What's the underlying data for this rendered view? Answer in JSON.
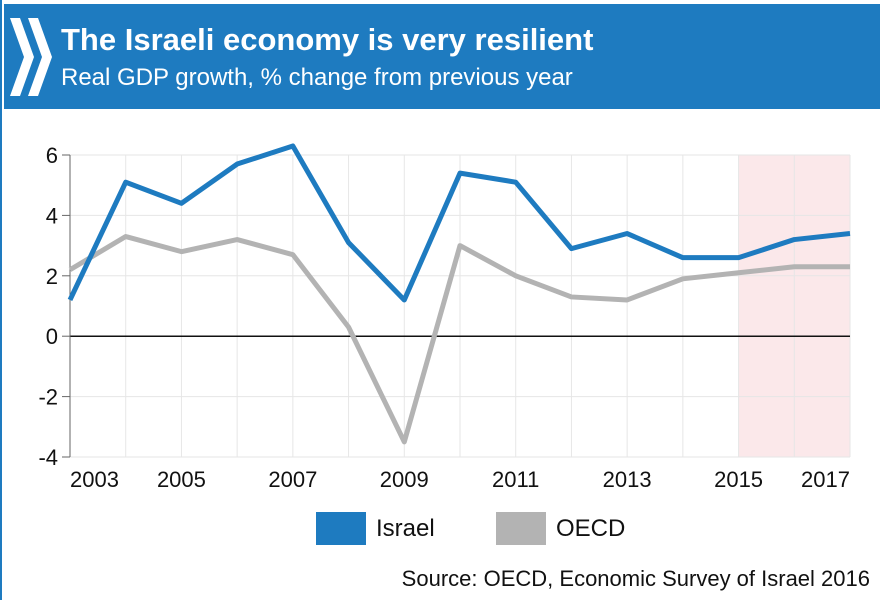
{
  "header": {
    "title": "The Israeli economy is very resilient",
    "subtitle": "Real GDP growth, % change from previous year"
  },
  "colors": {
    "header_bg": "#1e7bc0",
    "israel": "#1e7bc0",
    "oecd": "#b3b3b3",
    "projection_shade": "#fbe8ea"
  },
  "chart_data": {
    "type": "line",
    "x": [
      2003,
      2004,
      2005,
      2006,
      2007,
      2008,
      2009,
      2010,
      2011,
      2012,
      2013,
      2014,
      2015,
      2016,
      2017
    ],
    "x_tick_labels": [
      "2003",
      "2005",
      "2007",
      "2009",
      "2011",
      "2013",
      "2015",
      "2017"
    ],
    "y_tick_labels": [
      "6",
      "4",
      "2",
      "0",
      "-2",
      "-4"
    ],
    "ylim": [
      -4,
      6
    ],
    "xlim": [
      2003,
      2017
    ],
    "grid": true,
    "legend_position": "bottom",
    "projection_shaded_from": 2015,
    "series": [
      {
        "name": "Israel",
        "values": [
          1.2,
          5.1,
          4.4,
          5.7,
          6.3,
          3.1,
          1.2,
          5.4,
          5.1,
          2.9,
          3.4,
          2.6,
          2.6,
          3.2,
          3.4
        ]
      },
      {
        "name": "OECD",
        "values": [
          2.2,
          3.3,
          2.8,
          3.2,
          2.7,
          0.3,
          -3.5,
          3.0,
          2.0,
          1.3,
          1.2,
          1.9,
          2.1,
          2.3,
          2.3
        ]
      }
    ]
  },
  "legend": {
    "israel_label": "Israel",
    "oecd_label": "OECD"
  },
  "source": "Source: OECD, Economic Survey of Israel 2016"
}
